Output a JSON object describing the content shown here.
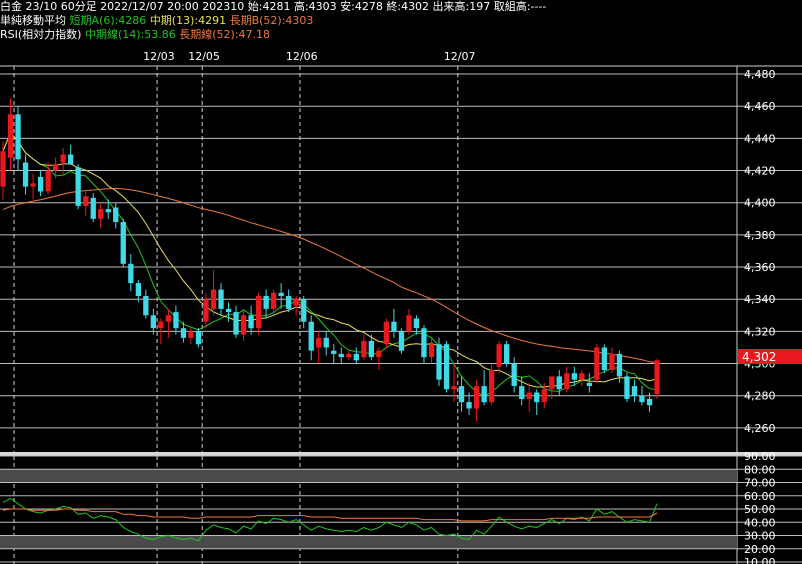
{
  "header": {
    "line1": "白金 23/10 60分足 2022/12/07 20:00 202310 始:4281 高:4303 安:4278 終:4302 出来高:197 取組高:----",
    "ma_title": "単純移動平均",
    "ma_short": "短期A(6):4286",
    "ma_mid": "中期(13):4291",
    "ma_long": "長期B(52):4303",
    "rsi_title": "RSI(相対力指数)",
    "rsi_mid": "中期線(14):53.86",
    "rsi_long": "長期線(52):47.18"
  },
  "colors": {
    "background": "#000000",
    "up": "#e8191e",
    "down": "#3fd9e8",
    "ma_short": "#22c422",
    "ma_mid": "#e8e05a",
    "ma_long": "#f07a3a",
    "price_label_bg": "#e8191e"
  },
  "price_label": "4,302",
  "chart_data": [
    {
      "type": "candlestick",
      "x_labels": [
        {
          "label": "12/03",
          "index": 21
        },
        {
          "label": "12/05",
          "index": 27
        },
        {
          "label": "12/06",
          "index": 40
        },
        {
          "label": "12/07",
          "index": 61
        }
      ],
      "ylim": [
        4245,
        4485
      ],
      "y_ticks": [
        4260,
        4280,
        4300,
        4320,
        4340,
        4360,
        4380,
        4400,
        4420,
        4440,
        4460,
        4480
      ],
      "y_tick_labels": [
        "4,260",
        "4,280",
        "4,300",
        "4,320",
        "4,340",
        "4,360",
        "4,380",
        "4,400",
        "4,420",
        "4,440",
        "4,460",
        "4,480"
      ],
      "last_price": 4302,
      "candles": [
        {
          "o": 4410,
          "h": 4438,
          "l": 4402,
          "c": 4432
        },
        {
          "o": 4428,
          "h": 4465,
          "l": 4420,
          "c": 4455
        },
        {
          "o": 4455,
          "h": 4460,
          "l": 4420,
          "c": 4427
        },
        {
          "o": 4425,
          "h": 4430,
          "l": 4405,
          "c": 4410
        },
        {
          "o": 4410,
          "h": 4418,
          "l": 4402,
          "c": 4412
        },
        {
          "o": 4416,
          "h": 4420,
          "l": 4404,
          "c": 4407
        },
        {
          "o": 4407,
          "h": 4425,
          "l": 4405,
          "c": 4420
        },
        {
          "o": 4420,
          "h": 4428,
          "l": 4415,
          "c": 4424
        },
        {
          "o": 4425,
          "h": 4434,
          "l": 4418,
          "c": 4430
        },
        {
          "o": 4430,
          "h": 4436,
          "l": 4424,
          "c": 4424
        },
        {
          "o": 4422,
          "h": 4424,
          "l": 4396,
          "c": 4398
        },
        {
          "o": 4398,
          "h": 4408,
          "l": 4392,
          "c": 4404
        },
        {
          "o": 4403,
          "h": 4406,
          "l": 4388,
          "c": 4390
        },
        {
          "o": 4390,
          "h": 4400,
          "l": 4384,
          "c": 4396
        },
        {
          "o": 4396,
          "h": 4402,
          "l": 4390,
          "c": 4394
        },
        {
          "o": 4397,
          "h": 4400,
          "l": 4384,
          "c": 4388
        },
        {
          "o": 4388,
          "h": 4390,
          "l": 4360,
          "c": 4362
        },
        {
          "o": 4362,
          "h": 4368,
          "l": 4345,
          "c": 4350
        },
        {
          "o": 4350,
          "h": 4352,
          "l": 4338,
          "c": 4342
        },
        {
          "o": 4342,
          "h": 4346,
          "l": 4328,
          "c": 4330
        },
        {
          "o": 4330,
          "h": 4334,
          "l": 4318,
          "c": 4322
        },
        {
          "o": 4322,
          "h": 4328,
          "l": 4312,
          "c": 4326
        },
        {
          "o": 4326,
          "h": 4334,
          "l": 4316,
          "c": 4330
        },
        {
          "o": 4332,
          "h": 4336,
          "l": 4318,
          "c": 4322
        },
        {
          "o": 4322,
          "h": 4326,
          "l": 4313,
          "c": 4316
        },
        {
          "o": 4316,
          "h": 4322,
          "l": 4312,
          "c": 4320
        },
        {
          "o": 4320,
          "h": 4322,
          "l": 4310,
          "c": 4312
        },
        {
          "o": 4326,
          "h": 4344,
          "l": 4322,
          "c": 4340
        },
        {
          "o": 4334,
          "h": 4358,
          "l": 4330,
          "c": 4346
        },
        {
          "o": 4346,
          "h": 4350,
          "l": 4330,
          "c": 4334
        },
        {
          "o": 4334,
          "h": 4338,
          "l": 4326,
          "c": 4332
        },
        {
          "o": 4332,
          "h": 4336,
          "l": 4316,
          "c": 4318
        },
        {
          "o": 4318,
          "h": 4334,
          "l": 4314,
          "c": 4330
        },
        {
          "o": 4330,
          "h": 4336,
          "l": 4318,
          "c": 4322
        },
        {
          "o": 4322,
          "h": 4344,
          "l": 4318,
          "c": 4342
        },
        {
          "o": 4342,
          "h": 4346,
          "l": 4328,
          "c": 4334
        },
        {
          "o": 4334,
          "h": 4346,
          "l": 4330,
          "c": 4344
        },
        {
          "o": 4344,
          "h": 4350,
          "l": 4334,
          "c": 4342
        },
        {
          "o": 4342,
          "h": 4346,
          "l": 4332,
          "c": 4334
        },
        {
          "o": 4336,
          "h": 4342,
          "l": 4330,
          "c": 4340
        },
        {
          "o": 4340,
          "h": 4342,
          "l": 4322,
          "c": 4326
        },
        {
          "o": 4326,
          "h": 4330,
          "l": 4302,
          "c": 4308
        },
        {
          "o": 4310,
          "h": 4320,
          "l": 4300,
          "c": 4316
        },
        {
          "o": 4316,
          "h": 4320,
          "l": 4305,
          "c": 4310
        },
        {
          "o": 4308,
          "h": 4312,
          "l": 4300,
          "c": 4306
        },
        {
          "o": 4306,
          "h": 4310,
          "l": 4300,
          "c": 4304
        },
        {
          "o": 4304,
          "h": 4308,
          "l": 4302,
          "c": 4306
        },
        {
          "o": 4306,
          "h": 4310,
          "l": 4300,
          "c": 4302
        },
        {
          "o": 4304,
          "h": 4318,
          "l": 4302,
          "c": 4314
        },
        {
          "o": 4314,
          "h": 4318,
          "l": 4302,
          "c": 4304
        },
        {
          "o": 4304,
          "h": 4310,
          "l": 4296,
          "c": 4308
        },
        {
          "o": 4312,
          "h": 4328,
          "l": 4310,
          "c": 4326
        },
        {
          "o": 4326,
          "h": 4334,
          "l": 4316,
          "c": 4320
        },
        {
          "o": 4320,
          "h": 4322,
          "l": 4306,
          "c": 4308
        },
        {
          "o": 4320,
          "h": 4334,
          "l": 4318,
          "c": 4330
        },
        {
          "o": 4328,
          "h": 4330,
          "l": 4318,
          "c": 4322
        },
        {
          "o": 4322,
          "h": 4324,
          "l": 4300,
          "c": 4304
        },
        {
          "o": 4304,
          "h": 4316,
          "l": 4300,
          "c": 4312
        },
        {
          "o": 4312,
          "h": 4316,
          "l": 4286,
          "c": 4290
        },
        {
          "o": 4312,
          "h": 4314,
          "l": 4282,
          "c": 4284
        },
        {
          "o": 4284,
          "h": 4300,
          "l": 4276,
          "c": 4286
        },
        {
          "o": 4286,
          "h": 4292,
          "l": 4270,
          "c": 4276
        },
        {
          "o": 4276,
          "h": 4282,
          "l": 4268,
          "c": 4272
        },
        {
          "o": 4272,
          "h": 4290,
          "l": 4264,
          "c": 4286
        },
        {
          "o": 4286,
          "h": 4296,
          "l": 4274,
          "c": 4276
        },
        {
          "o": 4276,
          "h": 4300,
          "l": 4274,
          "c": 4296
        },
        {
          "o": 4298,
          "h": 4314,
          "l": 4294,
          "c": 4312
        },
        {
          "o": 4312,
          "h": 4314,
          "l": 4298,
          "c": 4300
        },
        {
          "o": 4300,
          "h": 4304,
          "l": 4282,
          "c": 4286
        },
        {
          "o": 4286,
          "h": 4292,
          "l": 4274,
          "c": 4278
        },
        {
          "o": 4278,
          "h": 4288,
          "l": 4270,
          "c": 4282
        },
        {
          "o": 4282,
          "h": 4284,
          "l": 4268,
          "c": 4276
        },
        {
          "o": 4276,
          "h": 4288,
          "l": 4272,
          "c": 4284
        },
        {
          "o": 4284,
          "h": 4292,
          "l": 4278,
          "c": 4292
        },
        {
          "o": 4292,
          "h": 4296,
          "l": 4280,
          "c": 4284
        },
        {
          "o": 4284,
          "h": 4298,
          "l": 4282,
          "c": 4294
        },
        {
          "o": 4294,
          "h": 4298,
          "l": 4286,
          "c": 4290
        },
        {
          "o": 4290,
          "h": 4296,
          "l": 4286,
          "c": 4294
        },
        {
          "o": 4288,
          "h": 4294,
          "l": 4282,
          "c": 4286
        },
        {
          "o": 4290,
          "h": 4312,
          "l": 4288,
          "c": 4310
        },
        {
          "o": 4310,
          "h": 4312,
          "l": 4294,
          "c": 4296
        },
        {
          "o": 4296,
          "h": 4310,
          "l": 4294,
          "c": 4306
        },
        {
          "o": 4306,
          "h": 4308,
          "l": 4288,
          "c": 4292
        },
        {
          "o": 4292,
          "h": 4294,
          "l": 4276,
          "c": 4278
        },
        {
          "o": 4286,
          "h": 4290,
          "l": 4276,
          "c": 4280
        },
        {
          "o": 4280,
          "h": 4286,
          "l": 4274,
          "c": 4276
        },
        {
          "o": 4278,
          "h": 4282,
          "l": 4270,
          "c": 4274
        },
        {
          "o": 4281,
          "h": 4303,
          "l": 4278,
          "c": 4302
        }
      ]
    },
    {
      "type": "line",
      "name": "RSI",
      "ylim": [
        10,
        90
      ],
      "y_ticks": [
        10,
        20,
        30,
        40,
        50,
        60,
        70,
        80,
        90
      ],
      "y_tick_labels": [
        "10.00",
        "20.00",
        "30.00",
        "40.00",
        "50.00",
        "60.00",
        "70.00",
        "80.00",
        "90.00"
      ],
      "bands": [
        [
          20,
          30
        ],
        [
          70,
          80
        ]
      ],
      "series": [
        {
          "key": "mid",
          "values": [
            55,
            58,
            54,
            50,
            48,
            47,
            49,
            50,
            52,
            51,
            46,
            47,
            43,
            45,
            44,
            42,
            36,
            33,
            31,
            28,
            27,
            29,
            30,
            28,
            27,
            28,
            26,
            34,
            38,
            36,
            35,
            32,
            37,
            35,
            41,
            39,
            43,
            42,
            40,
            42,
            38,
            34,
            37,
            35,
            34,
            33,
            34,
            33,
            36,
            34,
            36,
            40,
            38,
            36,
            40,
            38,
            34,
            36,
            31,
            30,
            31,
            28,
            27,
            34,
            31,
            37,
            44,
            40,
            37,
            35,
            37,
            36,
            39,
            42,
            39,
            43,
            42,
            44,
            41,
            50,
            46,
            48,
            44,
            40,
            42,
            41,
            40,
            54
          ]
        },
        {
          "key": "long",
          "values": [
            49,
            50,
            50,
            50,
            49,
            49,
            49,
            49,
            50,
            50,
            49,
            49,
            48,
            48,
            48,
            48,
            46,
            46,
            45,
            45,
            44,
            44,
            44,
            44,
            44,
            43,
            43,
            44,
            44,
            44,
            44,
            44,
            44,
            44,
            45,
            45,
            45,
            45,
            45,
            45,
            45,
            44,
            44,
            44,
            44,
            43,
            43,
            43,
            43,
            43,
            43,
            43,
            43,
            43,
            43,
            43,
            42,
            42,
            42,
            42,
            42,
            41,
            41,
            41,
            41,
            42,
            42,
            42,
            42,
            42,
            42,
            42,
            42,
            43,
            43,
            43,
            43,
            43,
            43,
            44,
            44,
            44,
            44,
            44,
            44,
            44,
            44,
            47
          ]
        }
      ]
    }
  ]
}
